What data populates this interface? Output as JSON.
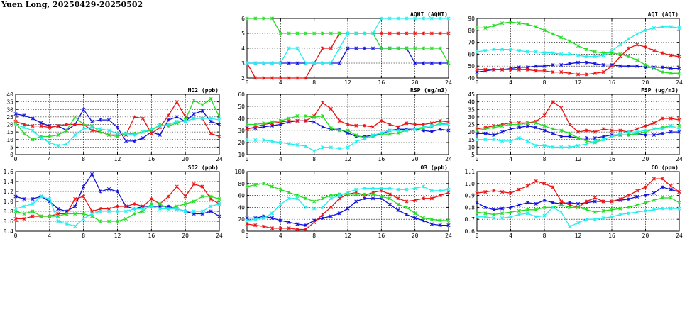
{
  "title": "Yuen Long, 20250429-20250502",
  "colors": {
    "blue": "#1111dd",
    "red": "#ee1111",
    "green": "#22dd22",
    "cyan": "#22eeee"
  },
  "chart_data": [
    {
      "id": "aqhi",
      "type": "line",
      "title": "AQHI (AQHI)",
      "xlim": [
        0,
        24
      ],
      "xticks": [
        0,
        4,
        8,
        12,
        16,
        20,
        24
      ],
      "ylim": [
        2,
        6
      ],
      "yticks": [
        2,
        3,
        4,
        5,
        6
      ],
      "series": [
        {
          "color": "blue",
          "values": [
            3,
            3,
            3,
            3,
            3,
            3,
            3,
            3,
            3,
            3,
            3,
            3,
            4,
            4,
            4,
            4,
            4,
            4,
            4,
            4,
            3,
            3,
            3,
            3,
            3
          ]
        },
        {
          "color": "red",
          "values": [
            3,
            2,
            2,
            2,
            2,
            2,
            2,
            2,
            3,
            4,
            4,
            5,
            5,
            5,
            5,
            5,
            5,
            5,
            5,
            5,
            5,
            5,
            5,
            5,
            5
          ]
        },
        {
          "color": "green",
          "values": [
            6,
            6,
            6,
            6,
            5,
            5,
            5,
            5,
            5,
            5,
            5,
            5,
            5,
            5,
            5,
            5,
            4,
            4,
            4,
            4,
            4,
            4,
            4,
            4,
            3
          ]
        },
        {
          "color": "cyan",
          "values": [
            3,
            3,
            3,
            3,
            3,
            4,
            4,
            3,
            3,
            3,
            3,
            4,
            5,
            5,
            5,
            5,
            6,
            6,
            6,
            6,
            6,
            6,
            6,
            6,
            6
          ]
        }
      ]
    },
    {
      "id": "aqi",
      "type": "line",
      "title": "AQI (AQI)",
      "xlim": [
        0,
        24
      ],
      "xticks": [
        0,
        4,
        8,
        12,
        16,
        20,
        24
      ],
      "ylim": [
        40,
        90
      ],
      "yticks": [
        40,
        50,
        60,
        70,
        80,
        90
      ],
      "series": [
        {
          "color": "blue",
          "values": [
            45,
            46,
            47,
            47,
            48,
            49,
            49,
            50,
            50,
            51,
            51,
            52,
            53,
            53,
            52,
            51,
            51,
            50,
            50,
            50,
            49,
            49,
            49,
            48,
            48
          ]
        },
        {
          "color": "red",
          "values": [
            47,
            47,
            47,
            47,
            47,
            47,
            47,
            46,
            46,
            45,
            45,
            44,
            43,
            43,
            44,
            45,
            50,
            58,
            65,
            68,
            66,
            63,
            61,
            59,
            58
          ]
        },
        {
          "color": "green",
          "values": [
            82,
            82,
            84,
            86,
            87,
            86,
            85,
            83,
            80,
            77,
            74,
            71,
            67,
            64,
            62,
            61,
            61,
            60,
            58,
            55,
            51,
            48,
            45,
            44,
            44
          ]
        },
        {
          "color": "cyan",
          "values": [
            62,
            63,
            64,
            64,
            64,
            63,
            62,
            62,
            61,
            61,
            60,
            60,
            59,
            58,
            58,
            59,
            63,
            68,
            73,
            77,
            80,
            82,
            83,
            83,
            82
          ]
        }
      ]
    },
    {
      "id": "no2",
      "type": "line",
      "title": "NO2 (ppb)",
      "xlim": [
        0,
        24
      ],
      "xticks": [
        0,
        4,
        8,
        12,
        16,
        20,
        24
      ],
      "ylim": [
        0,
        40
      ],
      "yticks": [
        0,
        5,
        10,
        15,
        20,
        25,
        30,
        35,
        40
      ],
      "series": [
        {
          "color": "blue",
          "values": [
            27,
            26,
            24,
            21,
            19,
            19,
            16,
            20,
            30,
            22,
            23,
            23,
            18,
            9,
            9,
            11,
            15,
            13,
            23,
            25,
            22,
            27,
            29,
            22,
            20
          ]
        },
        {
          "color": "red",
          "values": [
            22,
            20,
            19,
            19,
            18,
            19,
            20,
            20,
            20,
            16,
            15,
            13,
            13,
            13,
            25,
            24,
            14,
            18,
            26,
            35,
            25,
            24,
            24,
            14,
            12
          ]
        },
        {
          "color": "green",
          "values": [
            21,
            14,
            10,
            12,
            12,
            13,
            16,
            25,
            20,
            19,
            15,
            13,
            12,
            14,
            14,
            15,
            16,
            20,
            19,
            21,
            23,
            36,
            33,
            37,
            25
          ]
        },
        {
          "color": "cyan",
          "values": [
            20,
            18,
            16,
            11,
            8,
            6,
            7,
            13,
            17,
            18,
            17,
            16,
            14,
            14,
            13,
            15,
            17,
            19,
            20,
            22,
            22,
            24,
            24,
            24,
            23
          ]
        }
      ]
    },
    {
      "id": "rsp",
      "type": "line",
      "title": "RSP (ug/m3)",
      "xlim": [
        0,
        24
      ],
      "xticks": [
        0,
        4,
        8,
        12,
        16,
        20,
        24
      ],
      "ylim": [
        10,
        60
      ],
      "yticks": [
        10,
        20,
        30,
        40,
        50,
        60
      ],
      "series": [
        {
          "color": "blue",
          "values": [
            32,
            32,
            33,
            34,
            35,
            37,
            38,
            38,
            37,
            33,
            31,
            31,
            28,
            25,
            25,
            26,
            27,
            30,
            31,
            31,
            31,
            30,
            29,
            31,
            30
          ]
        },
        {
          "color": "red",
          "values": [
            31,
            33,
            35,
            36,
            37,
            38,
            38,
            38,
            42,
            53,
            48,
            38,
            35,
            34,
            34,
            33,
            38,
            35,
            33,
            36,
            35,
            35,
            36,
            38,
            37
          ]
        },
        {
          "color": "green",
          "values": [
            35,
            35,
            36,
            37,
            38,
            40,
            42,
            42,
            41,
            42,
            32,
            30,
            30,
            26,
            24,
            25,
            27,
            27,
            28,
            30,
            31,
            32,
            33,
            36,
            35
          ]
        },
        {
          "color": "cyan",
          "values": [
            22,
            22,
            22,
            21,
            20,
            19,
            18,
            17,
            13,
            16,
            16,
            15,
            16,
            21,
            23,
            26,
            28,
            30,
            30,
            30,
            31,
            33,
            34,
            35,
            35
          ]
        }
      ]
    },
    {
      "id": "fsp",
      "type": "line",
      "title": "FSP (ug/m3)",
      "xlim": [
        0,
        24
      ],
      "xticks": [
        0,
        4,
        8,
        12,
        16,
        20,
        24
      ],
      "ylim": [
        5,
        45
      ],
      "yticks": [
        5,
        10,
        15,
        20,
        25,
        30,
        35,
        40,
        45
      ],
      "series": [
        {
          "color": "blue",
          "values": [
            19,
            19,
            18,
            20,
            22,
            23,
            24,
            23,
            21,
            19,
            17,
            17,
            16,
            16,
            16,
            17,
            18,
            18,
            18,
            19,
            18,
            18,
            19,
            20,
            20
          ]
        },
        {
          "color": "red",
          "values": [
            22,
            23,
            24,
            25,
            26,
            26,
            26,
            27,
            31,
            40,
            36,
            25,
            20,
            21,
            20,
            22,
            21,
            21,
            20,
            22,
            24,
            26,
            29,
            29,
            28
          ]
        },
        {
          "color": "green",
          "values": [
            21,
            22,
            23,
            24,
            25,
            25,
            26,
            26,
            24,
            22,
            21,
            19,
            16,
            14,
            13,
            15,
            17,
            18,
            18,
            19,
            20,
            22,
            23,
            24,
            24
          ]
        },
        {
          "color": "cyan",
          "values": [
            15,
            15,
            15,
            14,
            14,
            16,
            14,
            11,
            11,
            10,
            10,
            10,
            11,
            12,
            14,
            15,
            17,
            19,
            20,
            20,
            21,
            22,
            22,
            24,
            22
          ]
        }
      ]
    },
    {
      "id": "so2",
      "type": "line",
      "title": "SO2 (ppb)",
      "xlim": [
        0,
        24
      ],
      "xticks": [
        0,
        4,
        8,
        12,
        16,
        20,
        24
      ],
      "ylim": [
        0.4,
        1.6
      ],
      "yticks": [
        0.4,
        0.6,
        0.8,
        1.0,
        1.2,
        1.4,
        1.6
      ],
      "series": [
        {
          "color": "blue",
          "values": [
            1.1,
            1.05,
            1.05,
            1.1,
            1.0,
            0.85,
            0.8,
            0.9,
            1.3,
            1.55,
            1.2,
            1.25,
            1.2,
            0.9,
            0.85,
            0.9,
            0.9,
            0.9,
            0.9,
            0.85,
            0.8,
            0.75,
            0.75,
            0.8,
            0.7
          ]
        },
        {
          "color": "red",
          "values": [
            0.65,
            0.65,
            0.7,
            0.7,
            0.7,
            0.75,
            0.75,
            1.05,
            1.1,
            0.8,
            0.85,
            0.85,
            0.9,
            0.9,
            0.95,
            0.9,
            1.05,
            0.95,
            1.1,
            1.3,
            1.1,
            1.35,
            1.3,
            1.05,
            0.95
          ]
        },
        {
          "color": "green",
          "values": [
            0.8,
            0.75,
            0.8,
            0.7,
            0.7,
            0.7,
            0.75,
            0.75,
            0.75,
            0.7,
            0.6,
            0.6,
            0.6,
            0.65,
            0.75,
            0.8,
            0.95,
            0.95,
            0.85,
            0.9,
            0.95,
            1.0,
            1.1,
            1.1,
            1.05
          ]
        },
        {
          "color": "cyan",
          "values": [
            0.85,
            0.9,
            0.95,
            1.1,
            1.05,
            0.6,
            0.55,
            0.5,
            0.65,
            0.75,
            0.8,
            0.8,
            0.8,
            0.8,
            0.85,
            0.85,
            0.9,
            0.85,
            0.85,
            0.85,
            0.8,
            0.8,
            0.8,
            0.9,
            0.95
          ]
        }
      ]
    },
    {
      "id": "o3",
      "type": "line",
      "title": "O3 (ppb)",
      "xlim": [
        0,
        24
      ],
      "xticks": [
        0,
        4,
        8,
        12,
        16,
        20,
        24
      ],
      "ylim": [
        0,
        100
      ],
      "yticks": [
        0,
        20,
        40,
        60,
        80,
        100
      ],
      "series": [
        {
          "color": "blue",
          "values": [
            22,
            22,
            25,
            22,
            18,
            15,
            12,
            10,
            18,
            22,
            25,
            30,
            38,
            50,
            55,
            55,
            55,
            45,
            35,
            28,
            22,
            18,
            12,
            10,
            10
          ]
        },
        {
          "color": "red",
          "values": [
            12,
            10,
            8,
            5,
            5,
            5,
            3,
            3,
            15,
            28,
            40,
            55,
            62,
            65,
            60,
            65,
            68,
            62,
            55,
            50,
            52,
            55,
            55,
            60,
            65
          ]
        },
        {
          "color": "green",
          "values": [
            75,
            78,
            80,
            75,
            70,
            65,
            60,
            55,
            50,
            55,
            60,
            62,
            62,
            62,
            62,
            62,
            58,
            55,
            45,
            40,
            30,
            22,
            20,
            18,
            18
          ]
        },
        {
          "color": "cyan",
          "values": [
            18,
            20,
            22,
            30,
            45,
            55,
            55,
            40,
            38,
            40,
            55,
            60,
            65,
            70,
            72,
            72,
            72,
            72,
            70,
            70,
            72,
            75,
            68,
            68,
            70
          ]
        }
      ]
    },
    {
      "id": "co",
      "type": "line",
      "title": "CO (ppm)",
      "xlim": [
        0,
        24
      ],
      "xticks": [
        0,
        4,
        8,
        12,
        16,
        20,
        24
      ],
      "ylim": [
        0.6,
        1.1
      ],
      "yticks": [
        0.6,
        0.7,
        0.8,
        0.9,
        1.0,
        1.1
      ],
      "series": [
        {
          "color": "blue",
          "values": [
            0.84,
            0.8,
            0.78,
            0.79,
            0.8,
            0.82,
            0.84,
            0.83,
            0.86,
            0.84,
            0.83,
            0.84,
            0.83,
            0.84,
            0.85,
            0.85,
            0.85,
            0.86,
            0.87,
            0.89,
            0.9,
            0.92,
            0.97,
            0.95,
            0.93
          ]
        },
        {
          "color": "red",
          "values": [
            0.92,
            0.93,
            0.94,
            0.93,
            0.92,
            0.95,
            0.98,
            1.02,
            1.0,
            0.97,
            0.85,
            0.82,
            0.8,
            0.85,
            0.88,
            0.85,
            0.85,
            0.87,
            0.9,
            0.94,
            0.97,
            1.04,
            1.04,
            0.98,
            0.93
          ]
        },
        {
          "color": "green",
          "values": [
            0.76,
            0.75,
            0.74,
            0.75,
            0.76,
            0.77,
            0.78,
            0.78,
            0.8,
            0.8,
            0.82,
            0.8,
            0.8,
            0.78,
            0.76,
            0.77,
            0.78,
            0.79,
            0.8,
            0.82,
            0.84,
            0.86,
            0.88,
            0.88,
            0.84
          ]
        },
        {
          "color": "cyan",
          "values": [
            0.72,
            0.72,
            0.71,
            0.71,
            0.72,
            0.74,
            0.75,
            0.72,
            0.73,
            0.8,
            0.76,
            0.64,
            0.67,
            0.7,
            0.7,
            0.71,
            0.72,
            0.74,
            0.75,
            0.76,
            0.77,
            0.78,
            0.79,
            0.79,
            0.79
          ]
        }
      ]
    }
  ]
}
